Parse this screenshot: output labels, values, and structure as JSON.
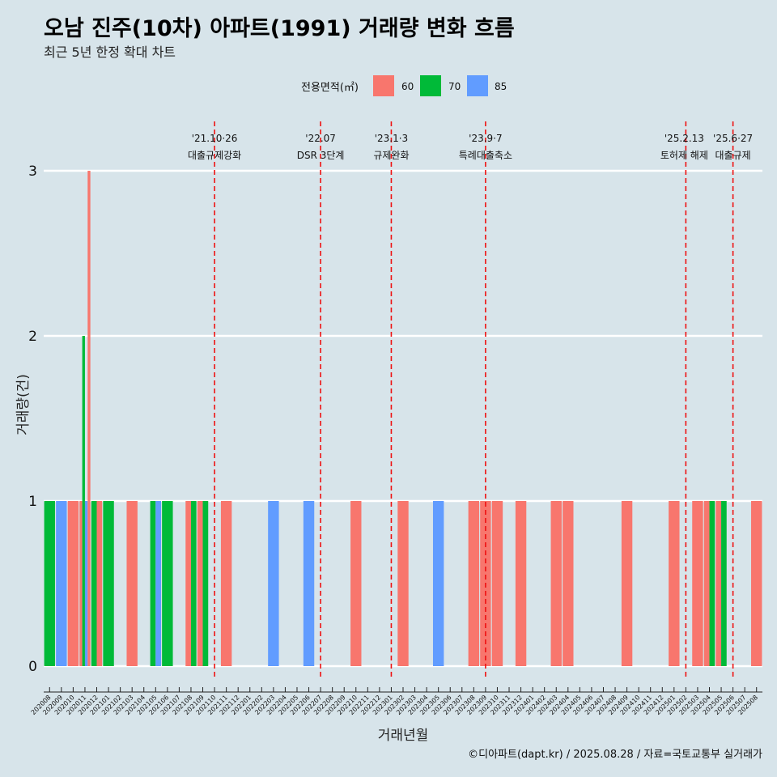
{
  "title": "오남 진주(10차) 아파트(1991) 거래량 변화 흐름",
  "subtitle": "최근 5년 한정 확대 차트",
  "credit": "©디아파트(dapt.kr) / 2025.08.28 / 자료=국토교통부 실거래가",
  "legend": {
    "title": "전용면적(㎡)",
    "items": [
      {
        "label": "60",
        "color": "#f8766d"
      },
      {
        "label": "70",
        "color": "#00ba38"
      },
      {
        "label": "85",
        "color": "#619cff"
      }
    ]
  },
  "chart_data": {
    "type": "bar",
    "title": "오남 진주(10차) 아파트(1991) 거래량 변화 흐름",
    "xlabel": "거래년월",
    "ylabel": "거래량(건)",
    "ylim": [
      0,
      3
    ],
    "yticks": [
      0,
      1,
      2,
      3
    ],
    "categories": [
      "202008",
      "202009",
      "202010",
      "202011",
      "202012",
      "202101",
      "202102",
      "202103",
      "202104",
      "202105",
      "202106",
      "202107",
      "202108",
      "202109",
      "202110",
      "202111",
      "202112",
      "202201",
      "202202",
      "202203",
      "202204",
      "202205",
      "202206",
      "202207",
      "202208",
      "202209",
      "202210",
      "202211",
      "202212",
      "202301",
      "202302",
      "202303",
      "202304",
      "202305",
      "202306",
      "202307",
      "202308",
      "202309",
      "202310",
      "202311",
      "202312",
      "202401",
      "202402",
      "202403",
      "202404",
      "202405",
      "202406",
      "202407",
      "202408",
      "202409",
      "202410",
      "202411",
      "202412",
      "202501",
      "202502",
      "202503",
      "202504",
      "202505",
      "202506",
      "202507",
      "202508"
    ],
    "bars": [
      {
        "month": "202008",
        "area": "70",
        "count": 1
      },
      {
        "month": "202009",
        "area": "85",
        "count": 1
      },
      {
        "month": "202010",
        "area": "60",
        "count": 1
      },
      {
        "month": "202011",
        "area": "60",
        "count": 1
      },
      {
        "month": "202011",
        "area": "70",
        "count": 2
      },
      {
        "month": "202011",
        "area": "85",
        "count": 1
      },
      {
        "month": "202011",
        "area": "60",
        "count": 3
      },
      {
        "month": "202012",
        "area": "70",
        "count": 1
      },
      {
        "month": "202012",
        "area": "60",
        "count": 1
      },
      {
        "month": "202101",
        "area": "70",
        "count": 1
      },
      {
        "month": "202103",
        "area": "60",
        "count": 1
      },
      {
        "month": "202105",
        "area": "70",
        "count": 1
      },
      {
        "month": "202105",
        "area": "85",
        "count": 1
      },
      {
        "month": "202106",
        "area": "70",
        "count": 1
      },
      {
        "month": "202108",
        "area": "60",
        "count": 1
      },
      {
        "month": "202108",
        "area": "70",
        "count": 1
      },
      {
        "month": "202109",
        "area": "60",
        "count": 1
      },
      {
        "month": "202109",
        "area": "70",
        "count": 1
      },
      {
        "month": "202111",
        "area": "60",
        "count": 1
      },
      {
        "month": "202203",
        "area": "85",
        "count": 1
      },
      {
        "month": "202206",
        "area": "85",
        "count": 1
      },
      {
        "month": "202210",
        "area": "60",
        "count": 1
      },
      {
        "month": "202302",
        "area": "60",
        "count": 1
      },
      {
        "month": "202305",
        "area": "85",
        "count": 1
      },
      {
        "month": "202308",
        "area": "60",
        "count": 1
      },
      {
        "month": "202309",
        "area": "60",
        "count": 1
      },
      {
        "month": "202310",
        "area": "60",
        "count": 1
      },
      {
        "month": "202312",
        "area": "60",
        "count": 1
      },
      {
        "month": "202403",
        "area": "60",
        "count": 1
      },
      {
        "month": "202404",
        "area": "60",
        "count": 1
      },
      {
        "month": "202409",
        "area": "60",
        "count": 1
      },
      {
        "month": "202501",
        "area": "60",
        "count": 1
      },
      {
        "month": "202503",
        "area": "60",
        "count": 1
      },
      {
        "month": "202504",
        "area": "60",
        "count": 1
      },
      {
        "month": "202504",
        "area": "70",
        "count": 1
      },
      {
        "month": "202505",
        "area": "60",
        "count": 1
      },
      {
        "month": "202505",
        "area": "70",
        "count": 1
      },
      {
        "month": "202508",
        "area": "60",
        "count": 1
      }
    ],
    "events": [
      {
        "month": "202110",
        "date": "'21.10·26",
        "label": "대출규제강화"
      },
      {
        "month": "202207",
        "date": "'22.07",
        "label": "DSR 3단계"
      },
      {
        "month": "202301",
        "date": "'23.1·3",
        "label": "규제완화"
      },
      {
        "month": "202309",
        "date": "'23.9·7",
        "label": "특례대출축소"
      },
      {
        "month": "202502",
        "date": "'25.2.13",
        "label": "토허제 해제"
      },
      {
        "month": "202506",
        "date": "'25.6·27",
        "label": "대출규제"
      }
    ]
  }
}
